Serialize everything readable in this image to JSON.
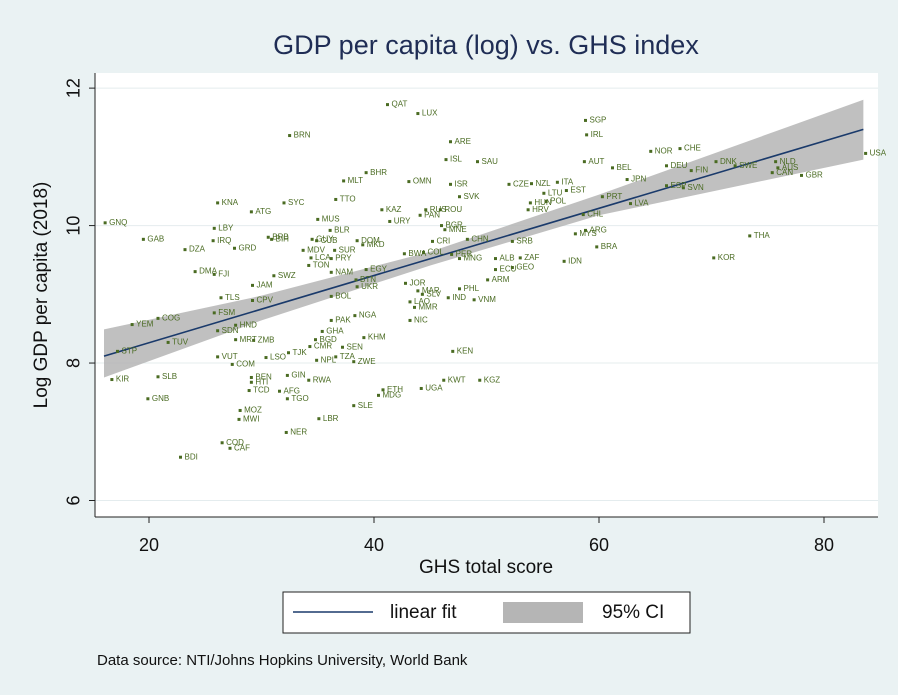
{
  "chart_data": {
    "type": "scatter",
    "title": "GDP per capita (log) vs. GHS index",
    "xlabel": "GHS total score",
    "ylabel": "Log GDP per capita (2018)",
    "source": "Data source: NTI/Johns Hopkins University, World Bank",
    "xlim": [
      15.2,
      84.8
    ],
    "ylim": [
      5.76,
      12.22
    ],
    "xticks": [
      20,
      40,
      60,
      80
    ],
    "yticks": [
      6,
      8,
      10,
      12
    ],
    "grid": true,
    "points": {
      "color": "#4a6b22",
      "labels": [
        "USA",
        "GNQ",
        "QAT",
        "LUX",
        "SGP",
        "IRL",
        "BRN",
        "ARE",
        "NOR",
        "CHE",
        "ISL",
        "SAU",
        "AUT",
        "BEL",
        "DEU",
        "DNK",
        "NLD",
        "SWE",
        "AUS",
        "FIN",
        "CAN",
        "GBR",
        "BHR",
        "MLT",
        "OMN",
        "ISR",
        "CZE",
        "NZL",
        "ITA",
        "JPN",
        "KOR",
        "THA",
        "ESP",
        "SVN",
        "LTU",
        "EST",
        "SVK",
        "HUN",
        "POL",
        "PRT",
        "LVA",
        "HRV",
        "KNA",
        "SYC",
        "ATG",
        "TTO",
        "KAZ",
        "PAN",
        "ROU",
        "RUS",
        "CHL",
        "MUS",
        "URY",
        "LBY",
        "BLR",
        "MNE",
        "BGR",
        "MYS",
        "ARG",
        "GAB",
        "IRQ",
        "GRD",
        "DZA",
        "BRB",
        "BIH",
        "GUY",
        "CUB",
        "DOM",
        "MKD",
        "CRI",
        "CHN",
        "SRB",
        "BRA",
        "MDV",
        "SUR",
        "COL",
        "BWA",
        "LCA",
        "PRY",
        "MNG",
        "PER",
        "ALB",
        "ZAF",
        "IDN",
        "TON",
        "JOR",
        "DMA",
        "FJI",
        "NAM",
        "ECU",
        "GEO",
        "SWZ",
        "EGY",
        "ARM",
        "BTN",
        "JAM",
        "PHL",
        "UKR",
        "BOL",
        "TLS",
        "CPV",
        "MAR",
        "SLV",
        "IND",
        "VNM",
        "LAO",
        "MMR",
        "NIC",
        "YEM",
        "COG",
        "FSM",
        "SLB",
        "VUT",
        "COM",
        "SDN",
        "HND",
        "MRT",
        "ZMB",
        "STP",
        "TUV",
        "KIR",
        "GNB",
        "PAK",
        "NGA",
        "GHA",
        "BGD",
        "KHM",
        "CMR",
        "SEN",
        "TJK",
        "LSO",
        "NPL",
        "TZA",
        "ZWE",
        "KEN",
        "GIN",
        "BEN",
        "HTI",
        "RWA",
        "TCD",
        "SLE",
        "ETH",
        "MDG",
        "UGA",
        "KWT",
        "KGZ",
        "AFG",
        "TGO",
        "LBR",
        "MOZ",
        "MWI",
        "NER",
        "COD",
        "CAF",
        "BDI"
      ],
      "x": [
        83.7,
        16.1,
        41.2,
        43.9,
        58.8,
        58.9,
        32.5,
        46.8,
        64.6,
        67.2,
        46.4,
        49.2,
        58.7,
        61.2,
        66.0,
        70.4,
        75.7,
        72.1,
        75.9,
        68.2,
        75.4,
        78.0,
        39.3,
        37.3,
        43.1,
        46.8,
        52.0,
        54.0,
        56.3,
        62.5,
        70.2,
        73.4,
        66.0,
        67.5,
        55.1,
        57.1,
        47.6,
        53.9,
        55.3,
        60.3,
        62.8,
        53.7,
        26.1,
        32.0,
        29.1,
        36.6,
        40.7,
        44.1,
        45.9,
        44.6,
        58.6,
        35.0,
        41.4,
        25.8,
        36.1,
        46.3,
        46.0,
        57.9,
        58.8,
        19.5,
        25.7,
        27.6,
        23.2,
        30.6,
        30.9,
        34.5,
        34.9,
        38.5,
        39.0,
        45.2,
        48.3,
        52.3,
        59.8,
        33.7,
        36.5,
        44.4,
        42.7,
        34.4,
        36.2,
        47.6,
        46.9,
        50.8,
        53.0,
        56.9,
        34.2,
        42.8,
        24.1,
        25.8,
        36.2,
        50.8,
        52.3,
        31.1,
        39.3,
        50.1,
        38.4,
        29.2,
        47.6,
        38.5,
        36.2,
        26.4,
        29.2,
        43.9,
        44.3,
        46.6,
        48.9,
        43.2,
        43.6,
        43.2,
        18.5,
        20.8,
        25.8,
        20.8,
        26.1,
        27.4,
        26.1,
        27.7,
        27.7,
        29.3,
        17.2,
        21.7,
        16.7,
        19.9,
        36.2,
        38.3,
        35.4,
        34.8,
        39.1,
        34.3,
        37.2,
        32.4,
        30.4,
        34.9,
        36.6,
        38.2,
        47.0,
        32.3,
        29.1,
        29.1,
        34.2,
        28.9,
        38.2,
        40.8,
        40.4,
        44.2,
        46.2,
        49.4,
        31.6,
        32.3,
        35.1,
        28.1,
        28.0,
        32.2,
        26.5,
        27.2,
        22.8
      ],
      "y": [
        11.05,
        10.04,
        11.76,
        11.63,
        11.53,
        11.32,
        11.31,
        11.22,
        11.08,
        11.12,
        10.96,
        10.93,
        10.93,
        10.84,
        10.87,
        10.93,
        10.93,
        10.87,
        10.84,
        10.8,
        10.77,
        10.73,
        10.77,
        10.65,
        10.64,
        10.6,
        10.6,
        10.61,
        10.63,
        10.67,
        9.53,
        9.85,
        10.58,
        10.55,
        10.47,
        10.51,
        10.42,
        10.33,
        10.35,
        10.42,
        10.32,
        10.23,
        10.33,
        10.33,
        10.2,
        10.38,
        10.23,
        10.15,
        10.23,
        10.23,
        10.16,
        10.09,
        10.06,
        9.96,
        9.93,
        9.94,
        10.0,
        9.88,
        9.93,
        9.8,
        9.78,
        9.67,
        9.65,
        9.83,
        9.8,
        9.8,
        9.78,
        9.78,
        9.72,
        9.77,
        9.8,
        9.77,
        9.69,
        9.64,
        9.64,
        9.61,
        9.59,
        9.53,
        9.52,
        9.52,
        9.58,
        9.52,
        9.53,
        9.48,
        9.42,
        9.16,
        9.33,
        9.29,
        9.32,
        9.36,
        9.39,
        9.27,
        9.36,
        9.21,
        9.21,
        9.13,
        9.08,
        9.11,
        8.97,
        8.95,
        8.91,
        9.05,
        9.0,
        8.95,
        8.92,
        8.89,
        8.81,
        8.62,
        8.56,
        8.65,
        8.73,
        7.8,
        8.09,
        7.98,
        8.47,
        8.55,
        8.34,
        8.33,
        8.17,
        8.3,
        7.76,
        7.48,
        8.62,
        8.69,
        8.46,
        8.34,
        8.37,
        8.24,
        8.23,
        8.15,
        8.08,
        8.04,
        8.09,
        8.02,
        8.17,
        7.82,
        7.79,
        7.72,
        7.75,
        7.6,
        7.38,
        7.61,
        7.53,
        7.63,
        7.75,
        7.75,
        7.59,
        7.48,
        7.19,
        7.31,
        7.18,
        6.99,
        6.84,
        6.76,
        6.63
      ]
    },
    "fit": {
      "name": "linear fit",
      "color": "#1a3a6b",
      "x": [
        16,
        83.5
      ],
      "y": [
        8.1,
        11.4
      ]
    },
    "ci": {
      "name": "95% CI",
      "color": "#b5b5b5",
      "x": [
        16,
        30,
        45,
        60,
        83.5
      ],
      "lower": [
        7.79,
        8.62,
        9.42,
        10.15,
        10.96
      ],
      "upper": [
        8.49,
        8.98,
        9.62,
        10.45,
        11.83
      ]
    }
  }
}
